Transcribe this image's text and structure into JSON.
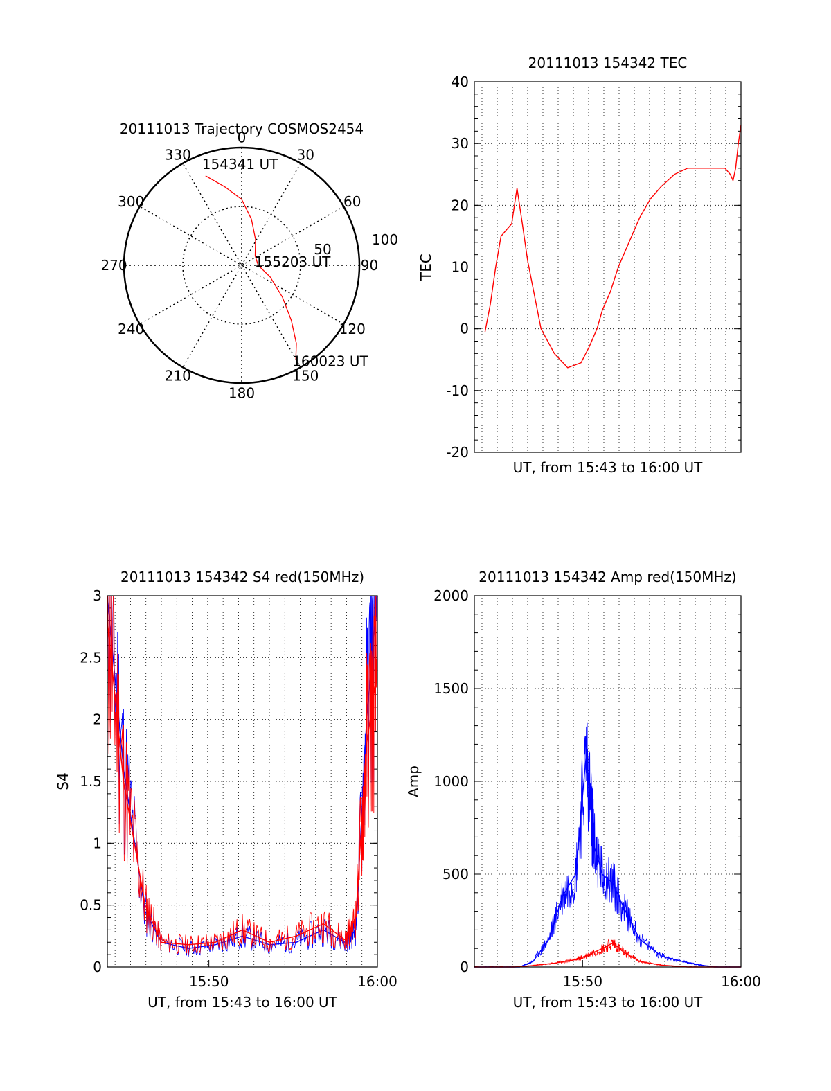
{
  "chart_data": [
    {
      "type": "polar",
      "title": "20111013 Trajectory COSMOS2454",
      "angle_labels": [
        "0",
        "30",
        "60",
        "90",
        "120",
        "150",
        "180",
        "210",
        "240",
        "270",
        "300",
        "330"
      ],
      "radial_labels": [
        "50",
        "100"
      ],
      "rlim": [
        0,
        100
      ],
      "grid": true,
      "series": [
        {
          "color": "#ff0000",
          "points": [
            [
              338,
              82
            ],
            [
              348,
              68
            ],
            [
              360,
              56
            ],
            [
              12,
              40
            ],
            [
              28,
              25
            ],
            [
              55,
              14
            ],
            [
              90,
              14
            ],
            [
              112,
              26
            ],
            [
              128,
              44
            ],
            [
              138,
              63
            ],
            [
              145,
              81
            ],
            [
              150,
              92
            ]
          ]
        }
      ],
      "annotations": [
        {
          "text": "154341 UT",
          "az": 338,
          "r": 82
        },
        {
          "text": "155203 UT",
          "az": 90,
          "r": 14
        },
        {
          "text": "160023 UT",
          "az": 150,
          "r": 92
        }
      ]
    },
    {
      "type": "line",
      "title": "20111013 154342 TEC",
      "xlabel": "UT, from 15:43 to 16:00 UT",
      "ylabel": "TEC",
      "ylim": [
        -20,
        40
      ],
      "yticks": [
        "-20",
        "-10",
        "0",
        "10",
        "20",
        "30",
        "40"
      ],
      "xlim": [
        0,
        1000
      ],
      "grid": true,
      "series": [
        {
          "color": "#ff0000",
          "x": [
            40,
            60,
            80,
            100,
            120,
            140,
            160,
            180,
            200,
            250,
            300,
            350,
            400,
            430,
            460,
            480,
            510,
            540,
            580,
            620,
            660,
            700,
            750,
            800,
            850,
            900,
            940,
            960,
            970,
            980,
            990,
            1000
          ],
          "y": [
            -0.5,
            4,
            10,
            15,
            16,
            17,
            22.8,
            17,
            11,
            0,
            -4,
            -6.3,
            -5.5,
            -3,
            0,
            3,
            6,
            10,
            14,
            18,
            21,
            23,
            25,
            26,
            26,
            26,
            26,
            25,
            24,
            26,
            30,
            33
          ]
        }
      ]
    },
    {
      "type": "line",
      "title": "20111013 154342 S4 red(150MHz)",
      "xlabel": "UT, from 15:43 to 16:00 UT",
      "ylabel": "S4",
      "ylim": [
        0,
        3
      ],
      "yticks": [
        "0",
        "0.5",
        "1",
        "1.5",
        "2",
        "2.5",
        "3"
      ],
      "xticks": [
        "15:50",
        "16:00"
      ],
      "grid": true,
      "series": [
        {
          "color": "#0000ff",
          "name": "",
          "x": [
            0,
            60,
            140,
            200,
            300,
            400,
            500,
            600,
            700,
            800,
            880,
            920,
            960,
            1000
          ],
          "y": [
            3,
            1.6,
            0.45,
            0.2,
            0.15,
            0.18,
            0.25,
            0.18,
            0.2,
            0.3,
            0.2,
            0.3,
            2,
            3
          ]
        },
        {
          "color": "#ff0000",
          "name": "",
          "x": [
            0,
            60,
            140,
            200,
            300,
            400,
            500,
            600,
            700,
            800,
            880,
            920,
            960,
            1000
          ],
          "y": [
            2.8,
            1.5,
            0.5,
            0.2,
            0.18,
            0.2,
            0.3,
            0.2,
            0.25,
            0.35,
            0.22,
            0.4,
            1.8,
            2.4
          ]
        }
      ]
    },
    {
      "type": "line",
      "title": "20111013 154342 Amp red(150MHz)",
      "xlabel": "UT, from 15:43 to 16:00 UT",
      "ylabel": "Amp",
      "ylim": [
        0,
        2000
      ],
      "yticks": [
        "0",
        "500",
        "1000",
        "1500",
        "2000"
      ],
      "xticks": [
        "15:50",
        "16:00"
      ],
      "grid": true,
      "series": [
        {
          "color": "#0000ff",
          "x": [
            0,
            100,
            170,
            220,
            280,
            330,
            380,
            420,
            440,
            450,
            480,
            520,
            560,
            620,
            700,
            780,
            850,
            900,
            1000
          ],
          "y": [
            0,
            0,
            0,
            30,
            150,
            380,
            500,
            1150,
            800,
            650,
            500,
            450,
            320,
            150,
            60,
            30,
            10,
            0,
            0
          ]
        },
        {
          "color": "#ff0000",
          "x": [
            0,
            150,
            200,
            300,
            380,
            420,
            480,
            520,
            560,
            620,
            700,
            800,
            1000
          ],
          "y": [
            0,
            0,
            5,
            20,
            40,
            60,
            100,
            130,
            80,
            30,
            10,
            0,
            0
          ]
        }
      ]
    }
  ]
}
